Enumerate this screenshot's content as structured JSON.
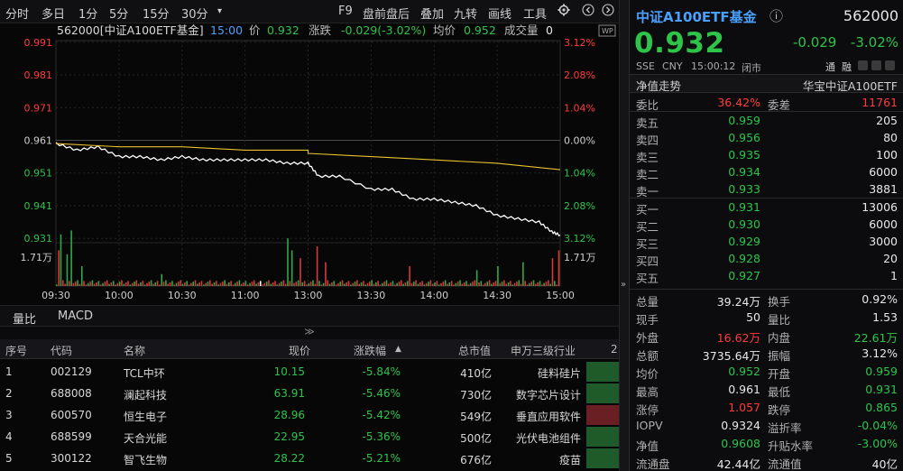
{
  "toolbar": {
    "periods": [
      "分时",
      "多日",
      "1分",
      "5分",
      "15分",
      "30分"
    ],
    "more": "▾",
    "tools": [
      "F9",
      "盘前盘后",
      "叠加",
      "九转",
      "画线",
      "工具"
    ]
  },
  "chart": {
    "info_code": "562000[中证A100ETF基金]",
    "info_time": "15:00",
    "info_price_label": "价",
    "info_price": "0.932",
    "info_change_label": "涨跌",
    "info_change": "-0.029(-3.02%)",
    "info_avg_label": "均价",
    "info_avg": "0.952",
    "info_vol_label": "成交量",
    "info_vol": "0",
    "wp_label": "WP",
    "y_left": [
      "0.991",
      "0.981",
      "0.971",
      "0.961",
      "0.951",
      "0.941",
      "0.931"
    ],
    "y_right": [
      "3.12%",
      "2.08%",
      "1.04%",
      "0.00%",
      "1.04%",
      "2.08%",
      "3.12%"
    ],
    "vol_label_left": "1.71万",
    "vol_label_right": "1.71万",
    "x_labels": [
      "09:30",
      "10:00",
      "10:30",
      "11:00",
      "13:00",
      "13:30",
      "14:00",
      "14:30",
      "15:00"
    ]
  },
  "chart_data": {
    "type": "line",
    "title": "562000[中证A100ETF基金]",
    "ylim": [
      0.9305,
      0.9915
    ],
    "prev_close": 0.961,
    "series": [
      {
        "name": "价",
        "color": "#ffffff",
        "x": [
          "09:30",
          "09:40",
          "09:50",
          "10:00",
          "10:10",
          "10:20",
          "10:30",
          "10:40",
          "10:50",
          "11:00",
          "11:10",
          "11:20",
          "11:30",
          "13:00",
          "13:05",
          "13:15",
          "13:30",
          "13:40",
          "13:50",
          "14:00",
          "14:10",
          "14:20",
          "14:30",
          "14:40",
          "14:50",
          "14:56",
          "15:00"
        ],
        "values": [
          0.96,
          0.958,
          0.959,
          0.956,
          0.956,
          0.955,
          0.956,
          0.955,
          0.955,
          0.955,
          0.955,
          0.954,
          0.954,
          0.954,
          0.95,
          0.95,
          0.946,
          0.946,
          0.943,
          0.943,
          0.942,
          0.941,
          0.938,
          0.937,
          0.936,
          0.933,
          0.932
        ]
      },
      {
        "name": "均价",
        "color": "#e8c030",
        "x": [
          "09:30",
          "10:00",
          "10:30",
          "11:00",
          "11:30",
          "13:00",
          "13:30",
          "14:00",
          "14:30",
          "15:00"
        ],
        "values": [
          0.96,
          0.959,
          0.959,
          0.958,
          0.958,
          0.957,
          0.956,
          0.955,
          0.954,
          0.952
        ]
      }
    ]
  },
  "subtabs": [
    "量比",
    "MACD"
  ],
  "collapse_icon": "≫",
  "table": {
    "headers": [
      "序号",
      "代码",
      "名称",
      "现价",
      "涨跌幅",
      "总市值",
      "申万三级行业",
      "2"
    ],
    "sort_arrow": "▲",
    "rows": [
      {
        "no": "1",
        "code": "002129",
        "name": "TCL中环",
        "price": "10.15",
        "chg": "-5.84%",
        "cap": "410亿",
        "ind": "硅料硅片"
      },
      {
        "no": "2",
        "code": "688008",
        "name": "澜起科技",
        "price": "63.91",
        "chg": "-5.46%",
        "cap": "730亿",
        "ind": "数字芯片设计"
      },
      {
        "no": "3",
        "code": "600570",
        "name": "恒生电子",
        "price": "28.96",
        "chg": "-5.42%",
        "cap": "549亿",
        "ind": "垂直应用软件"
      },
      {
        "no": "4",
        "code": "688599",
        "name": "天合光能",
        "price": "22.95",
        "chg": "-5.36%",
        "cap": "500亿",
        "ind": "光伏电池组件"
      },
      {
        "no": "5",
        "code": "300122",
        "name": "智飞生物",
        "price": "28.22",
        "chg": "-5.21%",
        "cap": "676亿",
        "ind": "疫苗"
      }
    ]
  },
  "quote": {
    "name": "中证A100ETF基金",
    "info_icon": "ⓘ",
    "code": "562000",
    "price": "0.932",
    "change": "-0.029",
    "pct": "-3.02%",
    "exchange": "SSE",
    "currency": "CNY",
    "time": "15:00:12",
    "status": "闭市",
    "badges": [
      "通",
      "融"
    ],
    "nav_trend": "净值走势",
    "issuer": "华宝中证A100ETF",
    "weibi_label": "委比",
    "weibi": "36.42%",
    "weicha_label": "委差",
    "weicha": "11761",
    "asks": [
      {
        "label": "卖五",
        "price": "0.959",
        "vol": "205"
      },
      {
        "label": "卖四",
        "price": "0.956",
        "vol": "80"
      },
      {
        "label": "卖三",
        "price": "0.935",
        "vol": "100"
      },
      {
        "label": "卖二",
        "price": "0.934",
        "vol": "6000"
      },
      {
        "label": "卖一",
        "price": "0.933",
        "vol": "3881"
      }
    ],
    "bids": [
      {
        "label": "买一",
        "price": "0.931",
        "vol": "13006"
      },
      {
        "label": "买二",
        "price": "0.930",
        "vol": "6000"
      },
      {
        "label": "买三",
        "price": "0.929",
        "vol": "3000"
      },
      {
        "label": "买四",
        "price": "0.928",
        "vol": "20"
      },
      {
        "label": "买五",
        "price": "0.927",
        "vol": "1"
      }
    ],
    "stats": [
      {
        "l1": "总量",
        "v1": "39.24万",
        "c1": "white",
        "l2": "换手",
        "v2": "0.92%",
        "c2": "white"
      },
      {
        "l1": "现手",
        "v1": "50",
        "c1": "white",
        "l2": "量比",
        "v2": "1.53",
        "c2": "white"
      },
      {
        "l1": "外盘",
        "v1": "16.62万",
        "c1": "red",
        "l2": "内盘",
        "v2": "22.61万",
        "c2": "green"
      },
      {
        "l1": "总额",
        "v1": "3735.64万",
        "c1": "white",
        "l2": "振幅",
        "v2": "3.12%",
        "c2": "white"
      },
      {
        "l1": "均价",
        "v1": "0.952",
        "c1": "green",
        "l2": "开盘",
        "v2": "0.959",
        "c2": "green"
      },
      {
        "l1": "最高",
        "v1": "0.961",
        "c1": "white",
        "l2": "最低",
        "v2": "0.931",
        "c2": "green"
      },
      {
        "l1": "涨停",
        "v1": "1.057",
        "c1": "red",
        "l2": "跌停",
        "v2": "0.865",
        "c2": "green"
      },
      {
        "l1": "IOPV",
        "v1": "0.9324",
        "c1": "white",
        "l2": "溢折率",
        "v2": "-0.04%",
        "c2": "green"
      },
      {
        "l1": "净值",
        "v1": "0.9608",
        "c1": "green",
        "l2": "升贴水率",
        "v2": "-3.00%",
        "c2": "green"
      },
      {
        "l1": "流通盘",
        "v1": "42.44亿",
        "c1": "white",
        "l2": "流通值",
        "v2": "40亿",
        "c2": "white"
      }
    ]
  },
  "colors": {
    "up": "#ff3b3b",
    "down": "#2ec44a",
    "price_line": "#ffffff",
    "avg_line": "#e8c030"
  }
}
